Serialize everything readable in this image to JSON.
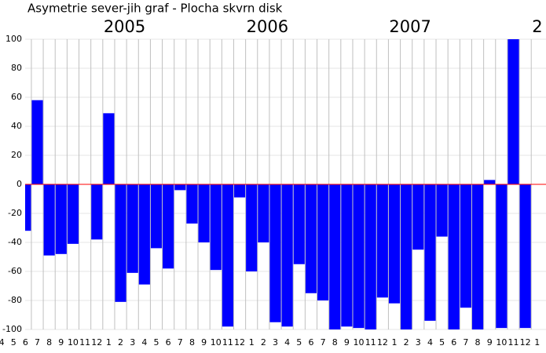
{
  "chart_data": {
    "type": "bar",
    "title": "Asymetrie sever-jih  graf -  Plocha skvrn disk",
    "categories": [
      "4",
      "5",
      "6",
      "7",
      "8",
      "9",
      "10",
      "11",
      "12",
      "1",
      "2",
      "3",
      "4",
      "5",
      "6",
      "7",
      "8",
      "9",
      "10",
      "11",
      "12",
      "1",
      "2",
      "3",
      "4",
      "5",
      "6",
      "7",
      "8",
      "9",
      "10",
      "11",
      "12",
      "1",
      "2",
      "3",
      "4",
      "5",
      "6",
      "7",
      "8",
      "9",
      "10",
      "11",
      "12",
      "1"
    ],
    "year_labels": [
      null,
      null,
      null,
      null,
      null,
      null,
      null,
      null,
      null,
      "2005",
      null,
      null,
      null,
      null,
      null,
      null,
      null,
      null,
      null,
      null,
      null,
      "2006",
      null,
      null,
      null,
      null,
      null,
      null,
      null,
      null,
      null,
      null,
      null,
      "2007",
      null,
      null,
      null,
      null,
      null,
      null,
      null,
      null,
      null,
      null,
      null,
      "2"
    ],
    "values": [
      null,
      null,
      -32,
      58,
      -49,
      -48,
      -41,
      0,
      -38,
      49,
      -81,
      -61,
      -69,
      -44,
      -58,
      -4,
      -27,
      -40,
      -59,
      -98,
      -9,
      -60,
      -40,
      -95,
      -98,
      -55,
      -75,
      -80,
      -100,
      -98,
      -99,
      -100,
      -78,
      -82,
      -100,
      -45,
      -94,
      -36,
      -100,
      -85,
      -100,
      3,
      -99,
      100,
      -99,
      0
    ],
    "color": "#0000ff",
    "zero_line_color": "#ff0000",
    "ylim": [
      -100,
      100
    ],
    "yticks": [
      -100,
      -80,
      -60,
      -40,
      -20,
      0,
      20,
      40,
      60,
      80,
      100
    ],
    "grid": true
  }
}
